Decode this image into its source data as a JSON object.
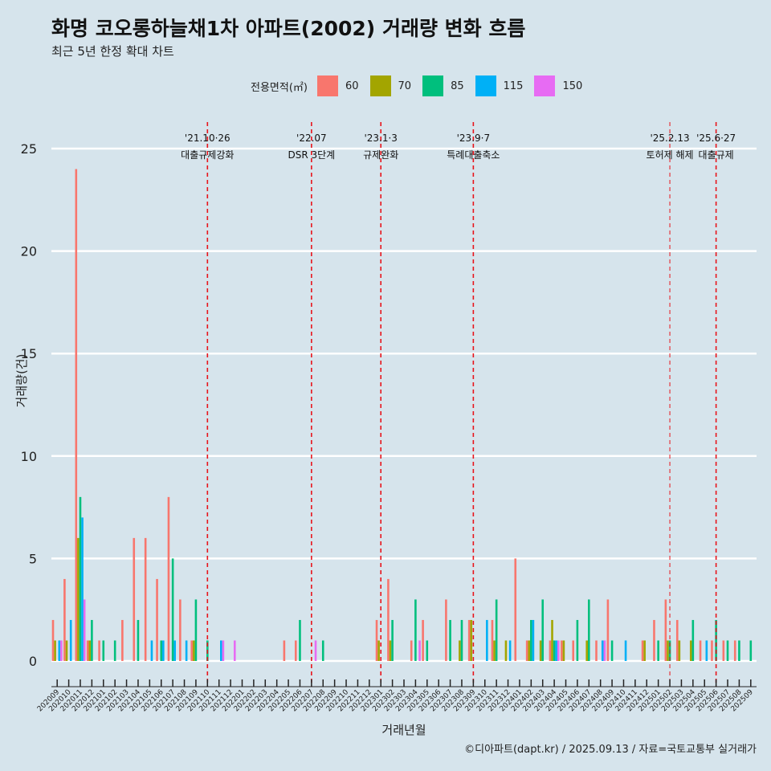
{
  "title": "화명 코오롱하늘채1차 아파트(2002) 거래량 변화 흐름",
  "subtitle": "최근 5년 한정 확대 차트",
  "caption": "©디아파트(dapt.kr) / 2025.09.13 / 자료=국토교통부 실거래가",
  "legend": {
    "title": "전용면적(㎡)",
    "items": [
      {
        "label": "60",
        "color": "#F8766D"
      },
      {
        "label": "70",
        "color": "#A3A500"
      },
      {
        "label": "85",
        "color": "#00BF7D"
      },
      {
        "label": "115",
        "color": "#00B0F6"
      },
      {
        "label": "150",
        "color": "#E76BF3"
      }
    ]
  },
  "chart_data": {
    "type": "bar",
    "xlabel": "거래년월",
    "ylabel": "거래량(건)",
    "ylim": [
      0,
      25
    ],
    "yticks": [
      0,
      5,
      10,
      15,
      20,
      25
    ],
    "grid": true,
    "legend_position": "top",
    "categories": [
      "202009",
      "202010",
      "202011",
      "202012",
      "202101",
      "202102",
      "202103",
      "202104",
      "202105",
      "202106",
      "202107",
      "202108",
      "202109",
      "202110",
      "202111",
      "202112",
      "202201",
      "202202",
      "202203",
      "202204",
      "202205",
      "202206",
      "202207",
      "202208",
      "202209",
      "202210",
      "202211",
      "202212",
      "202301",
      "202302",
      "202303",
      "202304",
      "202305",
      "202306",
      "202307",
      "202308",
      "202309",
      "202310",
      "202311",
      "202312",
      "202401",
      "202402",
      "202403",
      "202404",
      "202405",
      "202406",
      "202407",
      "202408",
      "202409",
      "202410",
      "202411",
      "202412",
      "202501",
      "202502",
      "202503",
      "202504",
      "202505",
      "202506",
      "202507",
      "202508",
      "202509"
    ],
    "series": [
      {
        "name": "60",
        "color": "#F8766D",
        "values": [
          2,
          4,
          24,
          1,
          1,
          0,
          2,
          6,
          6,
          4,
          8,
          3,
          1,
          0,
          0,
          0,
          0,
          0,
          0,
          0,
          1,
          1,
          0,
          0,
          0,
          0,
          0,
          0,
          2,
          4,
          0,
          1,
          2,
          0,
          3,
          0,
          2,
          0,
          2,
          0,
          5,
          1,
          0,
          1,
          1,
          1,
          0,
          1,
          3,
          0,
          0,
          1,
          2,
          3,
          2,
          0,
          1,
          1,
          1,
          1,
          0
        ]
      },
      {
        "name": "70",
        "color": "#A3A500",
        "values": [
          1,
          1,
          6,
          1,
          0,
          0,
          0,
          0,
          0,
          0,
          0,
          0,
          1,
          0,
          0,
          0,
          0,
          0,
          0,
          0,
          0,
          0,
          0,
          0,
          0,
          0,
          0,
          0,
          1,
          1,
          0,
          0,
          0,
          0,
          0,
          1,
          2,
          0,
          1,
          1,
          0,
          1,
          1,
          2,
          1,
          0,
          1,
          0,
          0,
          0,
          0,
          1,
          0,
          1,
          1,
          1,
          0,
          0,
          0,
          0,
          0
        ]
      },
      {
        "name": "85",
        "color": "#00BF7D",
        "values": [
          0,
          0,
          8,
          2,
          1,
          1,
          0,
          2,
          0,
          1,
          5,
          0,
          3,
          1,
          0,
          0,
          0,
          0,
          0,
          0,
          0,
          2,
          0,
          1,
          0,
          0,
          0,
          0,
          0,
          2,
          0,
          3,
          1,
          0,
          2,
          2,
          0,
          0,
          3,
          0,
          0,
          2,
          3,
          1,
          0,
          2,
          3,
          0,
          1,
          0,
          0,
          0,
          1,
          1,
          0,
          2,
          0,
          2,
          1,
          1,
          1
        ]
      },
      {
        "name": "115",
        "color": "#00B0F6",
        "values": [
          1,
          2,
          7,
          0,
          0,
          0,
          0,
          0,
          1,
          1,
          1,
          1,
          0,
          0,
          1,
          0,
          0,
          0,
          0,
          0,
          0,
          0,
          0,
          0,
          0,
          0,
          0,
          0,
          0,
          0,
          0,
          0,
          0,
          0,
          0,
          0,
          0,
          2,
          0,
          1,
          0,
          2,
          0,
          1,
          0,
          0,
          0,
          1,
          0,
          1,
          0,
          0,
          0,
          0,
          0,
          0,
          1,
          0,
          0,
          0,
          0
        ]
      },
      {
        "name": "150",
        "color": "#E76BF3",
        "values": [
          1,
          0,
          3,
          0,
          0,
          0,
          0,
          0,
          0,
          0,
          0,
          0,
          0,
          0,
          1,
          1,
          0,
          0,
          0,
          0,
          0,
          0,
          1,
          0,
          0,
          0,
          0,
          0,
          0,
          0,
          0,
          1,
          0,
          0,
          0,
          0,
          0,
          0,
          0,
          0,
          0,
          0,
          0,
          1,
          0,
          0,
          0,
          1,
          0,
          0,
          0,
          0,
          0,
          0,
          0,
          0,
          0,
          0,
          0,
          0,
          0
        ]
      }
    ],
    "annotations": [
      {
        "at": "202110",
        "date": "'21.10·26",
        "label": "대출규제강화"
      },
      {
        "at": "202207",
        "date": "'22.07",
        "label": "DSR 3단계"
      },
      {
        "at": "202301",
        "date": "'23.1·3",
        "label": "규제완화"
      },
      {
        "at": "202309",
        "date": "'23.9·7",
        "label": "특례대출축소"
      },
      {
        "at": "202502",
        "date": "'25.2.13",
        "label": "토허제 해제"
      },
      {
        "at": "202506",
        "date": "'25.6·27",
        "label": "대출규제"
      }
    ]
  }
}
